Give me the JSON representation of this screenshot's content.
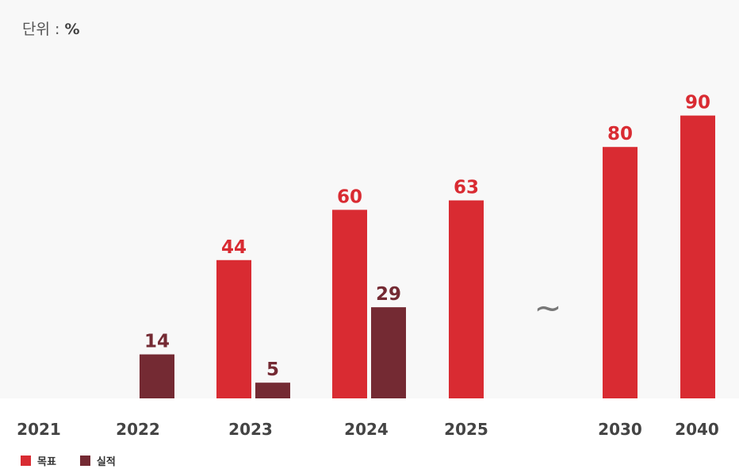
{
  "unit": {
    "prefix": "단위 : ",
    "symbol": "%"
  },
  "chart_data": {
    "type": "bar",
    "categories": [
      "2021",
      "2022",
      "2023",
      "2024",
      "2025",
      "2030",
      "2040"
    ],
    "axis_break_symbol": "~",
    "ylim": [
      0,
      100
    ],
    "grid": false,
    "legend_position": "bottom-left",
    "series": [
      {
        "name": "목표",
        "color": "#d92b32",
        "values": [
          null,
          null,
          44,
          60,
          63,
          80,
          90
        ]
      },
      {
        "name": "실적",
        "color": "#742a33",
        "values": [
          null,
          14,
          5,
          29,
          null,
          null,
          null
        ]
      }
    ]
  }
}
